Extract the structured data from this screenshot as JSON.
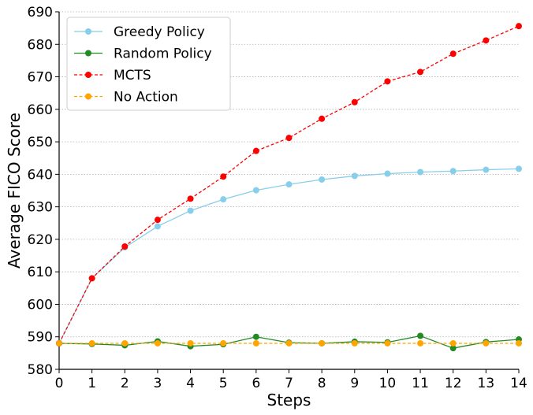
{
  "chart_data": {
    "type": "line",
    "title": "",
    "xlabel": "Steps",
    "ylabel": "Average FICO Score",
    "xlim": [
      0,
      14
    ],
    "ylim": [
      580,
      690
    ],
    "x_ticks": [
      0,
      1,
      2,
      3,
      4,
      5,
      6,
      7,
      8,
      9,
      10,
      11,
      12,
      13,
      14
    ],
    "y_ticks": [
      580,
      590,
      600,
      610,
      620,
      630,
      640,
      650,
      660,
      670,
      680,
      690
    ],
    "grid": "horizontal dotted",
    "legend_position": "top-left",
    "x": [
      0,
      1,
      2,
      3,
      4,
      5,
      6,
      7,
      8,
      9,
      10,
      11,
      12,
      13,
      14
    ],
    "series": [
      {
        "name": "Greedy Policy",
        "color": "#87ceeb",
        "linestyle": "solid",
        "values": [
          588,
          608,
          617.5,
          624,
          628.8,
          632.3,
          635.1,
          636.9,
          638.4,
          639.5,
          640.2,
          640.7,
          641.0,
          641.4,
          641.7
        ]
      },
      {
        "name": "Random Policy",
        "color": "#228b22",
        "linestyle": "solid",
        "values": [
          588,
          587.8,
          587.4,
          588.6,
          587.1,
          587.7,
          590.0,
          588.2,
          588.0,
          588.5,
          588.3,
          590.3,
          586.5,
          588.4,
          589.2
        ]
      },
      {
        "name": "MCTS",
        "color": "#ff0000",
        "linestyle": "dashed",
        "values": [
          588,
          608,
          617.8,
          626.0,
          632.5,
          639.3,
          647.2,
          651.2,
          657.1,
          662.2,
          668.6,
          671.5,
          677.1,
          681.2,
          685.6
        ]
      },
      {
        "name": "No Action",
        "color": "#ffa500",
        "linestyle": "dashed",
        "values": [
          588,
          588,
          588,
          588,
          588,
          588,
          588,
          588,
          588,
          588,
          588,
          588,
          588,
          588,
          588
        ]
      }
    ]
  }
}
